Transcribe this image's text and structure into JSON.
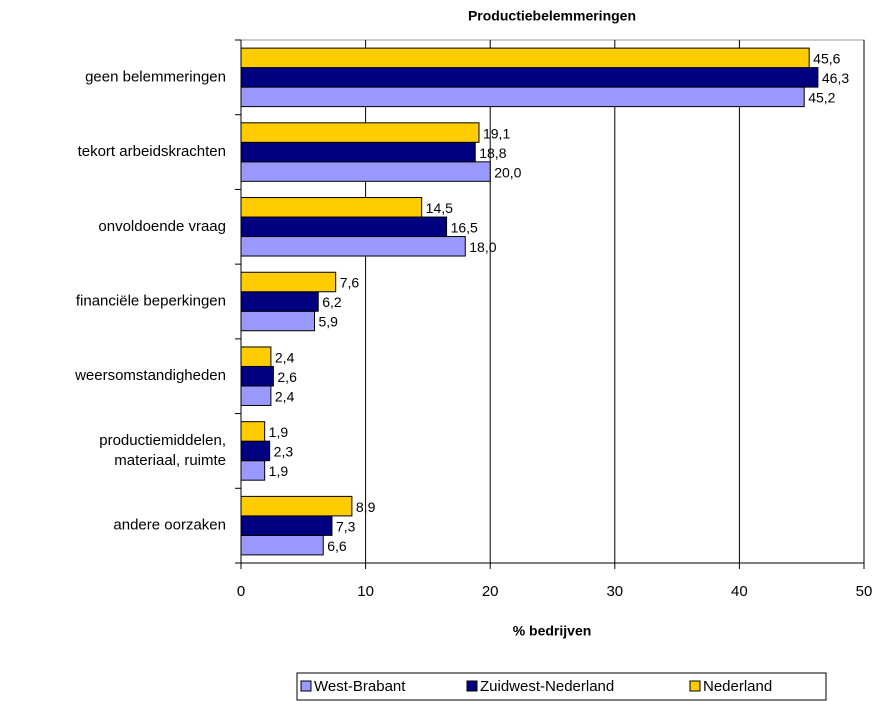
{
  "chart_data": {
    "type": "hbar",
    "title": "Productiebelemmeringen",
    "xlabel": "% bedrijven",
    "categories": [
      "geen belemmeringen",
      "tekort arbeidskrachten",
      "onvoldoende vraag",
      "financiële beperkingen",
      "weersomstandigheden",
      "productiemiddelen,\nmateriaal, ruimte",
      "andere oorzaken"
    ],
    "series": [
      {
        "name": "West-Brabant",
        "color": "#9999ff",
        "values": [
          45.2,
          20.0,
          18.0,
          5.9,
          2.4,
          1.9,
          6.6
        ],
        "value_labels": [
          "45,2",
          "20,0",
          "18,0",
          "5,9",
          "2,4",
          "1,9",
          "6,6"
        ]
      },
      {
        "name": "Zuidwest-Nederland",
        "color": "#000080",
        "values": [
          46.3,
          18.8,
          16.5,
          6.2,
          2.6,
          2.3,
          7.3
        ],
        "value_labels": [
          "46,3",
          "18,8",
          "16,5",
          "6,2",
          "2,6",
          "2,3",
          "7,3"
        ]
      },
      {
        "name": "Nederland",
        "color": "#ffcc00",
        "values": [
          45.6,
          19.1,
          14.5,
          7.6,
          2.4,
          1.9,
          8.9
        ],
        "value_labels": [
          "45,6",
          "19,1",
          "14,5",
          "7,6",
          "2,4",
          "1,9",
          "8,9"
        ]
      }
    ],
    "xlim": [
      0,
      50
    ],
    "xticks": [
      0,
      10,
      20,
      30,
      40,
      50
    ],
    "grid": true,
    "legend": "bottom"
  }
}
